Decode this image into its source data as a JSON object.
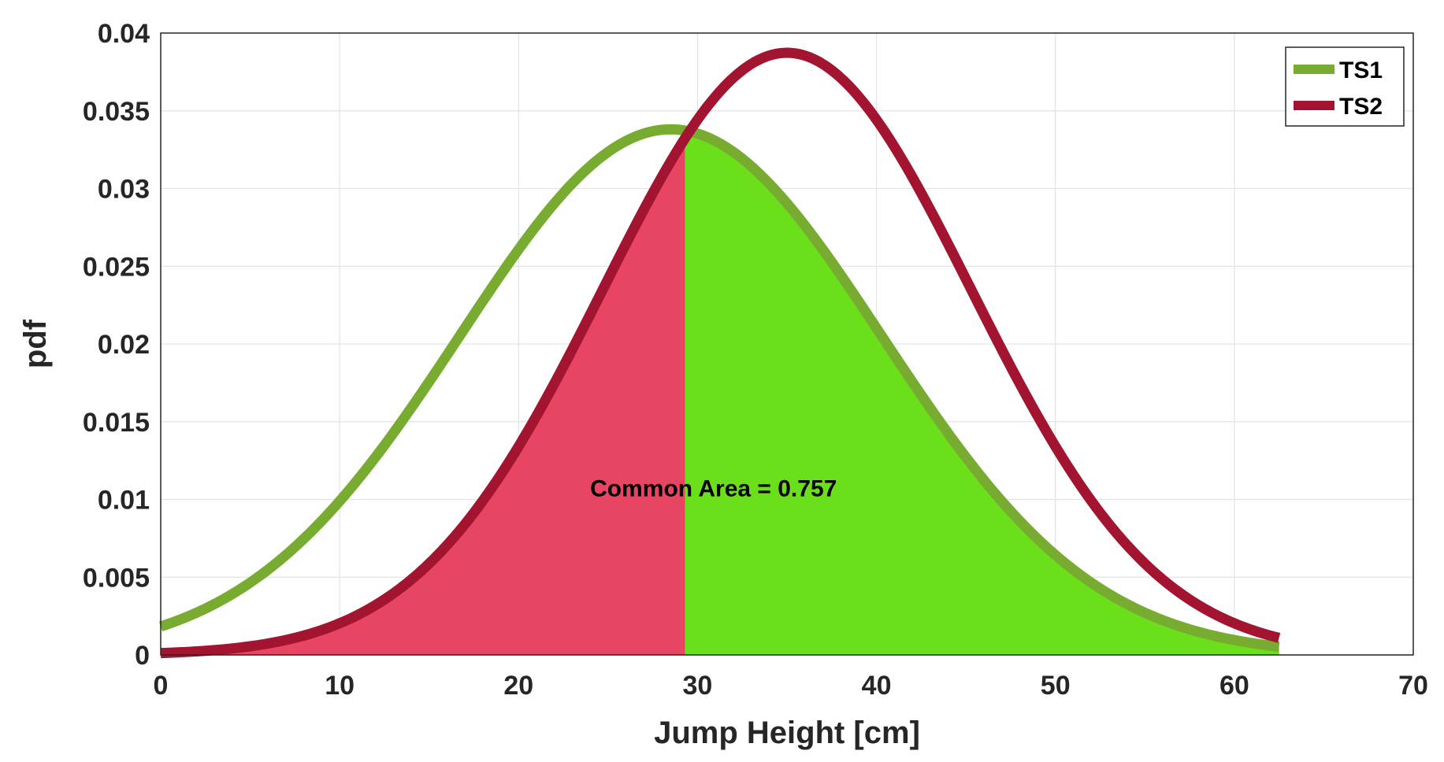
{
  "chart_data": {
    "type": "line",
    "xlabel": "Jump Height [cm]",
    "ylabel": "pdf",
    "xlim": [
      0,
      70
    ],
    "ylim": [
      0,
      0.04
    ],
    "xticks": [
      0,
      10,
      20,
      30,
      40,
      50,
      60,
      70
    ],
    "xtick_labels": [
      "0",
      "10",
      "20",
      "30",
      "40",
      "50",
      "60",
      "70"
    ],
    "yticks": [
      0,
      0.005,
      0.01,
      0.015,
      0.02,
      0.025,
      0.03,
      0.035,
      0.04
    ],
    "ytick_labels": [
      "0",
      "0.005",
      "0.01",
      "0.015",
      "0.02",
      "0.025",
      "0.03",
      "0.035",
      "0.04"
    ],
    "grid": true,
    "legend_position": "top-right",
    "x_range": [
      0,
      62.5
    ],
    "series": [
      {
        "name": "TS1",
        "color": "#77AC30",
        "distribution": "normal",
        "mean": 28.5,
        "sd": 11.8
      },
      {
        "name": "TS2",
        "color": "#A2142F",
        "distribution": "normal",
        "mean": 35.0,
        "sd": 10.3
      }
    ],
    "shaded_regions": [
      {
        "x_from": 0,
        "x_to": 29.3,
        "under": "TS2",
        "color": "#E84562"
      },
      {
        "x_from": 29.3,
        "x_to": 62.5,
        "under": "TS1",
        "color": "#6BE01A"
      }
    ],
    "annotation": {
      "text": "Common Area = 0.757",
      "x": 24,
      "y": 0.0102
    }
  }
}
